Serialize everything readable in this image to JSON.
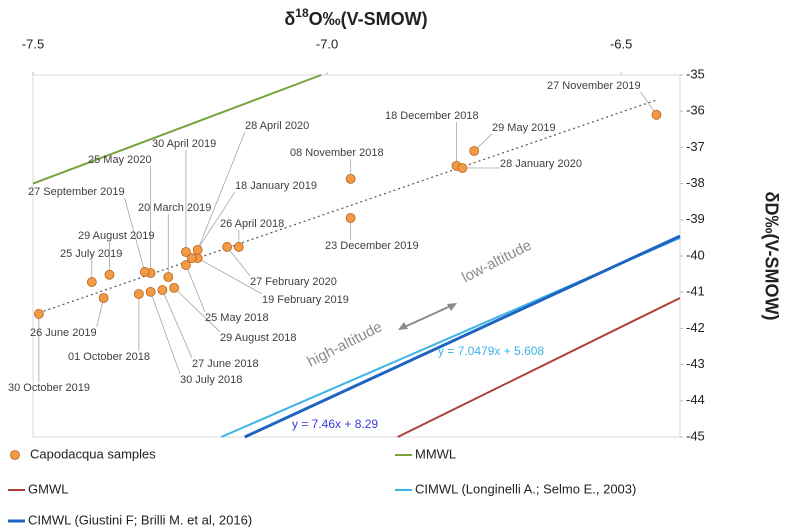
{
  "chart_data": {
    "type": "scatter",
    "xlabel": {
      "prefix": "δ",
      "sup": "18",
      "rest": "O‰(V-SMOW)"
    },
    "ylabel": "δD‰(V-SMOW)",
    "xlim": [
      -7.5,
      -6.4
    ],
    "xticks": [
      -7.5,
      {
        "value": -7.0,
        "label": "-7.0"
      },
      -6.5
    ],
    "ylim": [
      -45,
      -35
    ],
    "yticks": [
      -35,
      -36,
      -37,
      -38,
      -39,
      -40,
      -41,
      -42,
      -43,
      -44,
      -45
    ],
    "grid": false,
    "series": [
      {
        "name": "Capodacqua samples",
        "color": "#f29a45",
        "kind": "points",
        "x": [
          -7.49,
          -7.38,
          -7.32,
          -7.3,
          -7.28,
          -7.26,
          -7.24,
          -7.22,
          -7.17,
          -7.15,
          -7.23,
          -7.22,
          -7.24,
          -7.27,
          -7.3,
          -7.31,
          -7.37,
          -7.4,
          -6.96,
          -6.96,
          -6.78,
          -6.77,
          -6.75,
          -6.44
        ],
        "values": [
          -41.6,
          -41.16,
          -41.05,
          -40.99,
          -40.94,
          -40.88,
          -40.25,
          -40.06,
          -39.75,
          -39.75,
          -40.06,
          -39.83,
          -39.89,
          -40.58,
          -40.47,
          -40.44,
          -40.52,
          -40.72,
          -37.87,
          -38.95,
          -37.51,
          -37.57,
          -37.1,
          -36.1
        ],
        "labels": [
          "30 October 2019",
          "26 June 2019",
          "01 October 2018",
          "30 July 2018",
          "27 June 2018",
          "29 August 2018",
          "25 May 2018",
          "19 February 2019",
          "27 February 2020",
          "26 April 2018",
          "18 January 2019",
          "28 April 2020",
          "30 April 2019",
          "20 March 2019",
          "25 May 2020",
          "27 September 2019",
          "29 August 2019",
          "25 July 2019",
          "08 November 2018",
          "23 December 2019",
          "18 December 2018",
          "28 January 2020",
          "29 May 2019",
          "27 November 2019"
        ]
      },
      {
        "name": "MMWL",
        "color": "#77a33c",
        "kind": "line",
        "x": [
          -7.5,
          -7.01
        ],
        "values": [
          -38.0,
          -35
        ]
      },
      {
        "name": "GMWL",
        "color": "#b03c3c",
        "kind": "line",
        "x": [
          -6.88,
          -6.4
        ],
        "values": [
          -45,
          -41.16
        ]
      },
      {
        "name": "CIMWL (Longinelli A.; Selmo E., 2003)",
        "color": "#3cb4e6",
        "kind": "line",
        "x": [
          -7.18,
          -6.4
        ],
        "values": [
          -45,
          -39.5
        ]
      },
      {
        "name": "CIMWL (Giustini F; Brilli M. et al, 2016)",
        "color": "#1f64c0",
        "kind": "line",
        "x": [
          -7.14,
          -6.4
        ],
        "values": [
          -45,
          -39.45
        ]
      }
    ],
    "trendline": {
      "color": "#555555",
      "x": [
        -7.49,
        -6.44
      ],
      "values": [
        -41.57,
        -35.69
      ]
    },
    "annotations": {
      "high": "high-altitude",
      "low": "low-altitude",
      "eq1": "y = 7.0479x + 5.608",
      "eq2": "y = 7.46x + 8.29"
    },
    "annotation_colors": {
      "altitude": "#8c8c8c",
      "eq1": "#3cb4e6",
      "eq2": "#3a3adf"
    }
  }
}
